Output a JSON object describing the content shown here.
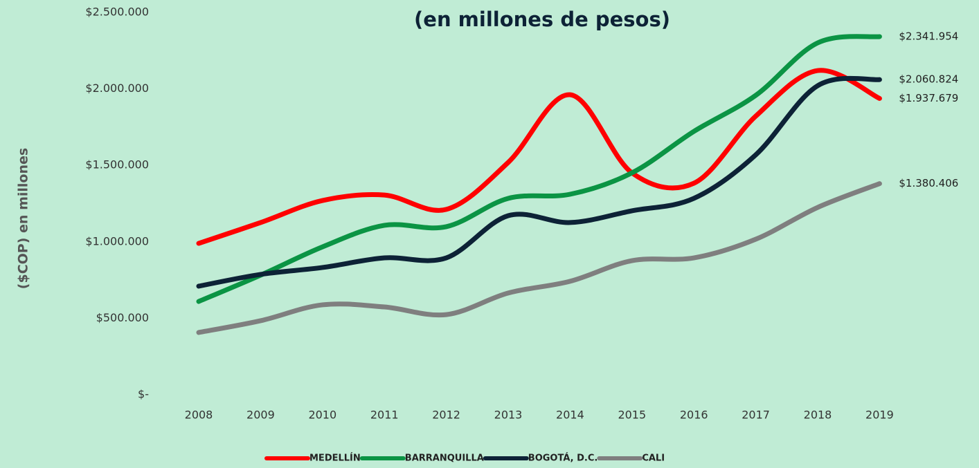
{
  "chart_data": {
    "type": "line",
    "title": "(en millones de pesos)",
    "y_label": "($COP) en millones",
    "categories": [
      "2008",
      "2009",
      "2010",
      "2011",
      "2012",
      "2013",
      "2014",
      "2015",
      "2016",
      "2017",
      "2018",
      "2019"
    ],
    "ylim": [
      0,
      2500000
    ],
    "yticks": [
      {
        "value": 0,
        "label": "$-"
      },
      {
        "value": 500000,
        "label": "$500.000"
      },
      {
        "value": 1000000,
        "label": "$1.000.000"
      },
      {
        "value": 1500000,
        "label": "$1.500.000"
      },
      {
        "value": 2000000,
        "label": "$2.000.000"
      },
      {
        "value": 2500000,
        "label": "$2.500.000"
      }
    ],
    "grid": false,
    "legend": "bottom",
    "series": [
      {
        "name": "MEDELLÍN",
        "color": "#ff0000",
        "values": [
          990000,
          1126000,
          1270000,
          1306000,
          1212000,
          1519000,
          1962000,
          1451000,
          1383000,
          1822000,
          2120000,
          1937679
        ],
        "value_labels": [
          null,
          null,
          null,
          null,
          null,
          null,
          null,
          null,
          null,
          null,
          null,
          "$1.937.679"
        ]
      },
      {
        "name": "BARRANQUILLA",
        "color": "#0b9444",
        "values": [
          610000,
          782000,
          967000,
          1108000,
          1099000,
          1284000,
          1311000,
          1451000,
          1722000,
          1958000,
          2301000,
          2341954
        ],
        "value_labels": [
          null,
          null,
          null,
          null,
          null,
          null,
          null,
          null,
          null,
          null,
          null,
          "$2.341.954"
        ]
      },
      {
        "name": "BOGOTÁ, D.C.",
        "color": "#0d2236",
        "values": [
          710000,
          787000,
          832000,
          895000,
          895000,
          1171000,
          1126000,
          1203000,
          1284000,
          1569000,
          2021000,
          2060824
        ],
        "value_labels": [
          null,
          null,
          null,
          null,
          null,
          null,
          null,
          null,
          null,
          null,
          null,
          "$2.060.824"
        ]
      },
      {
        "name": "CALI",
        "color": "#7f7f7f",
        "values": [
          407000,
          484000,
          588000,
          574000,
          524000,
          665000,
          742000,
          877000,
          895000,
          1017000,
          1225000,
          1380406
        ],
        "value_labels": [
          null,
          null,
          null,
          null,
          null,
          null,
          null,
          null,
          null,
          null,
          null,
          "$1.380.406"
        ]
      }
    ]
  }
}
